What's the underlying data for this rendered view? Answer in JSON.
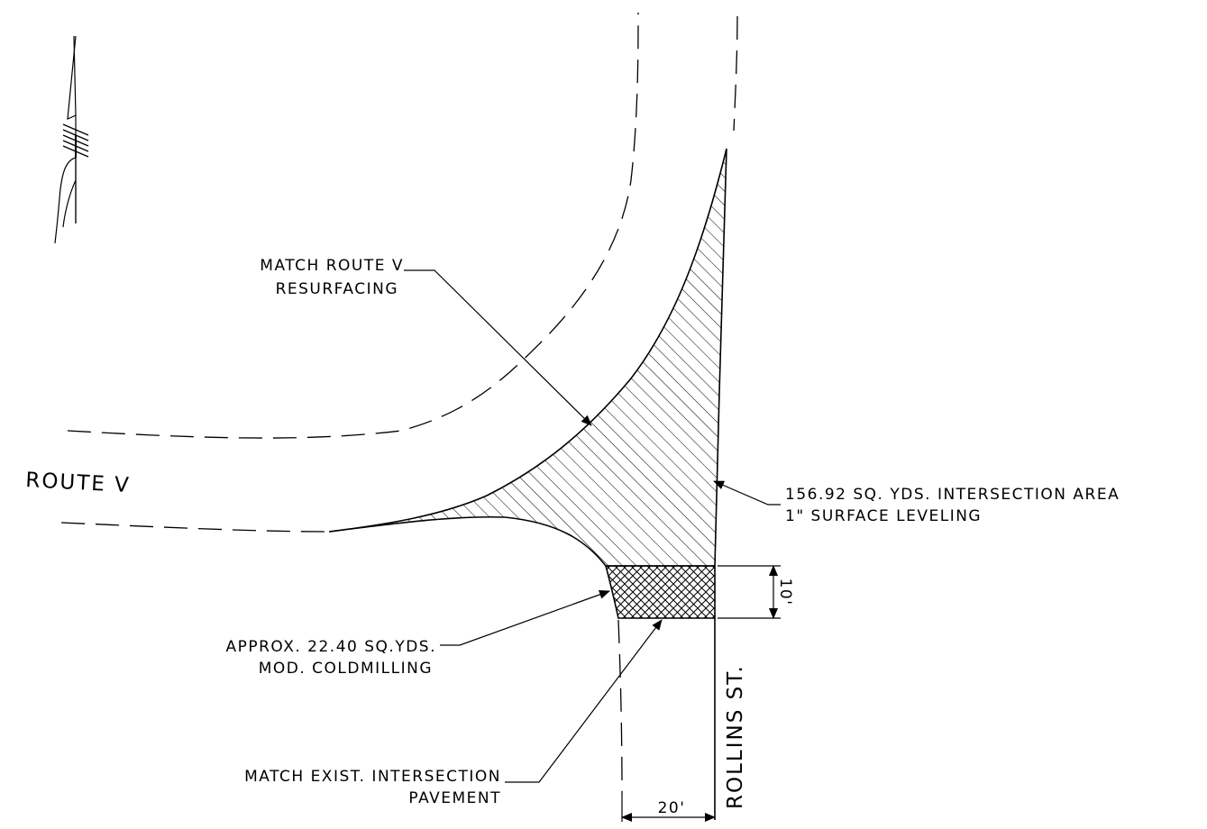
{
  "labels": {
    "match_route_v_line1": "MATCH ROUTE V",
    "match_route_v_line2": "RESURFACING",
    "area_line1": "156.92 SQ. YDS. INTERSECTION AREA",
    "area_line2": "1\" SURFACE LEVELING",
    "coldmilling_line1": "APPROX. 22.40 SQ.YDS.",
    "coldmilling_line2": "MOD. COLDMILLING",
    "match_exist_line1": "MATCH EXIST. INTERSECTION",
    "match_exist_line2": "PAVEMENT",
    "route_v": "ROUTE V",
    "rollins_st": "ROLLINS ST.",
    "dim_20": "20'",
    "dim_10": "10'"
  },
  "colors": {
    "ink": "#000000",
    "background": "#ffffff"
  },
  "icons": {
    "north_arrow": "north-arrow-icon"
  }
}
